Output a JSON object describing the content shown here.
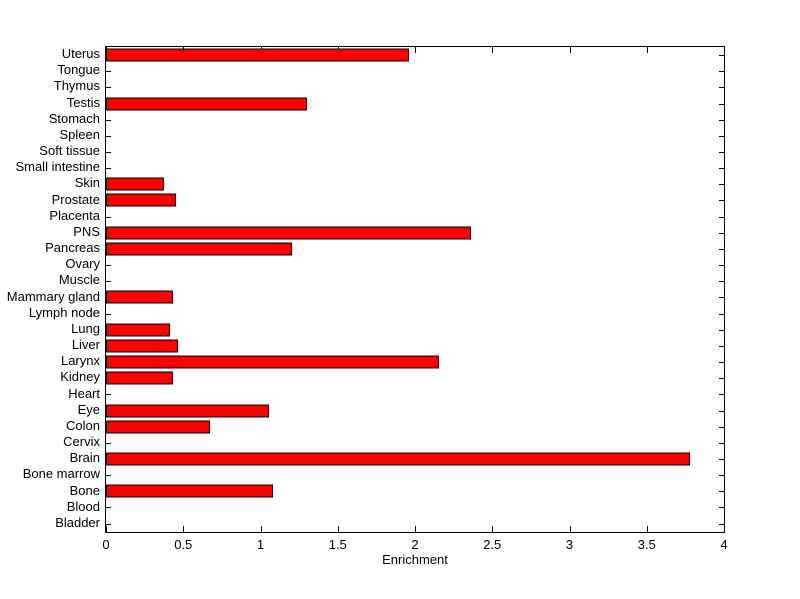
{
  "chart_data": {
    "type": "bar",
    "orientation": "horizontal",
    "title": "",
    "xlabel": "Enrichment",
    "ylabel": "",
    "categories": [
      "Uterus",
      "Tongue",
      "Thymus",
      "Testis",
      "Stomach",
      "Spleen",
      "Soft tissue",
      "Small intestine",
      "Skin",
      "Prostate",
      "Placenta",
      "PNS",
      "Pancreas",
      "Ovary",
      "Muscle",
      "Mammary gland",
      "Lymph node",
      "Lung",
      "Liver",
      "Larynx",
      "Kidney",
      "Heart",
      "Eye",
      "Colon",
      "Cervix",
      "Brain",
      "Bone marrow",
      "Bone",
      "Blood",
      "Bladder"
    ],
    "values": [
      1.95,
      0,
      0,
      1.29,
      0,
      0,
      0,
      0,
      0.36,
      0.44,
      0,
      2.35,
      1.19,
      0,
      0,
      0.42,
      0,
      0.4,
      0.45,
      2.14,
      0.42,
      0,
      1.04,
      0.66,
      0,
      3.77,
      0,
      1.07,
      0,
      0
    ],
    "xlim": [
      0,
      4
    ],
    "xticks": [
      0,
      0.5,
      1,
      1.5,
      2,
      2.5,
      3,
      3.5,
      4
    ],
    "xtick_labels": [
      "0",
      "0.5",
      "1",
      "1.5",
      "2",
      "2.5",
      "3",
      "3.5",
      "4"
    ],
    "grid": false,
    "legend": "none",
    "bar_color": "#ff0000",
    "bar_edge_color": "#000000",
    "axis_color": "#000000",
    "background_color": "#ffffff"
  }
}
